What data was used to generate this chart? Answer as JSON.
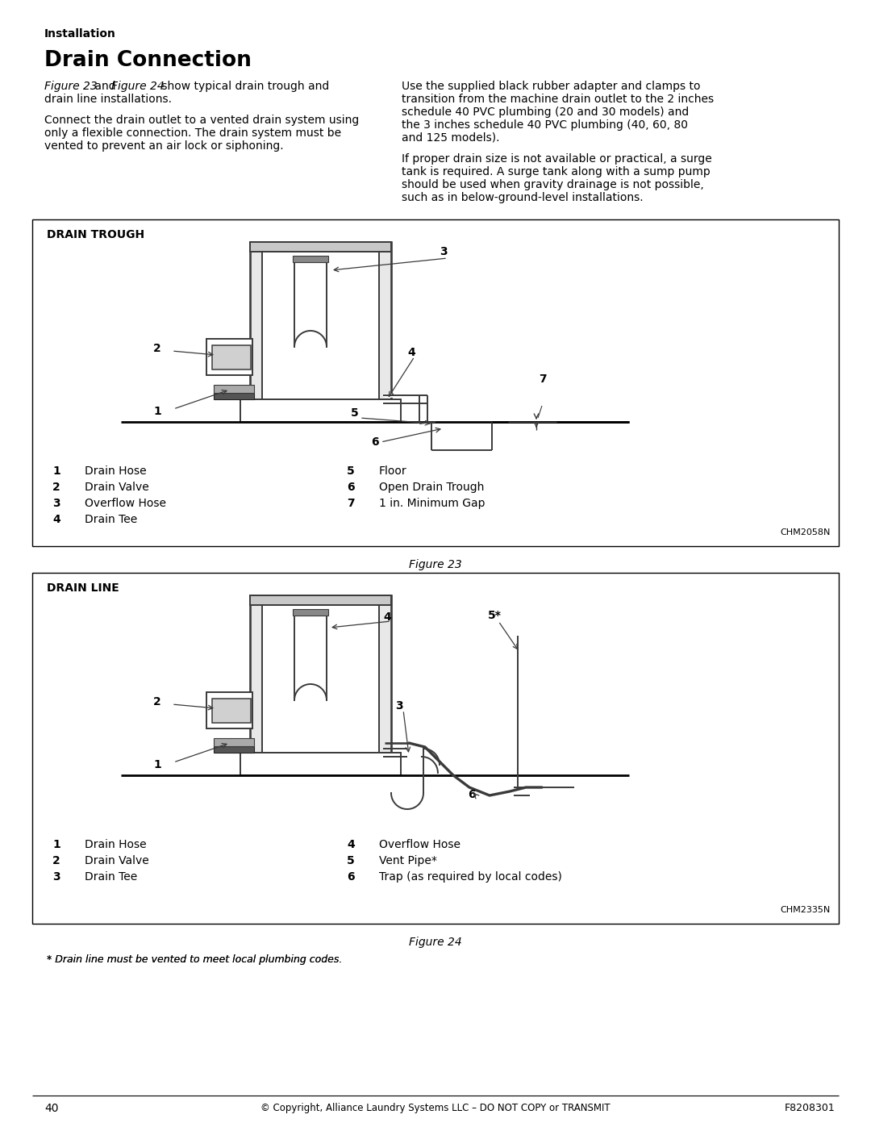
{
  "page_number": "40",
  "copyright": "© Copyright, Alliance Laundry Systems LLC – DO NOT COPY or TRANSMIT",
  "doc_number": "F8208301",
  "section_label": "Installation",
  "title": "Drain Connection",
  "para1_a": "Figure 23",
  "para1_b": " and ",
  "para1_c": "Figure 24",
  "para1_d": " show typical drain trough and",
  "para1_e": "drain line installations.",
  "para2_lines": [
    "Connect the drain outlet to a vented drain system using",
    "only a flexible connection. The drain system must be",
    "vented to prevent an air lock or siphoning."
  ],
  "para3_lines": [
    "Use the supplied black rubber adapter and clamps to",
    "transition from the machine drain outlet to the 2 inches",
    "schedule 40 PVC plumbing (20 and 30 models) and",
    "the 3 inches schedule 40 PVC plumbing (40, 60, 80",
    "and 125 models)."
  ],
  "para4_lines": [
    "If proper drain size is not available or practical, a surge",
    "tank is required. A surge tank along with a sump pump",
    "should be used when gravity drainage is not possible,",
    "such as in below-ground-level installations."
  ],
  "fig23_label": "DRAIN TROUGH",
  "fig23_caption": "Figure 23",
  "fig23_id": "CHM2058N",
  "fig23_legend_left": [
    {
      "num": "1",
      "text": "Drain Hose"
    },
    {
      "num": "2",
      "text": "Drain Valve"
    },
    {
      "num": "3",
      "text": "Overflow Hose"
    },
    {
      "num": "4",
      "text": "Drain Tee"
    }
  ],
  "fig23_legend_right": [
    {
      "num": "5",
      "text": "Floor"
    },
    {
      "num": "6",
      "text": "Open Drain Trough"
    },
    {
      "num": "7",
      "text": "1 in. Minimum Gap"
    }
  ],
  "fig24_label": "DRAIN LINE",
  "fig24_caption": "Figure 24",
  "fig24_id": "CHM2335N",
  "fig24_legend_left": [
    {
      "num": "1",
      "text": "Drain Hose"
    },
    {
      "num": "2",
      "text": "Drain Valve"
    },
    {
      "num": "3",
      "text": "Drain Tee"
    }
  ],
  "fig24_legend_right": [
    {
      "num": "4",
      "text": "Overflow Hose"
    },
    {
      "num": "5",
      "text": "Vent Pipe*"
    },
    {
      "num": "6",
      "text": "Trap (as required by local codes)"
    }
  ],
  "fig24_footnote": "* Drain line must be vented to meet local plumbing codes.",
  "background": "#ffffff",
  "lc": "#3a3a3a",
  "lw": 1.4
}
